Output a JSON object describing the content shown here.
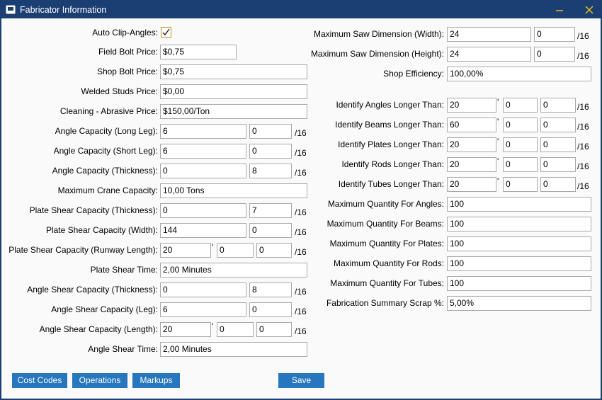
{
  "window": {
    "title": "Fabricator Information"
  },
  "left_fields": [
    {
      "label": "Auto Clip-Angles:",
      "checked": true
    },
    {
      "label": "Field Bolt Price:",
      "inputs": [
        "$0,75"
      ]
    },
    {
      "label": "Shop Bolt Price:",
      "inputs": [
        "$0,75"
      ]
    },
    {
      "label": "Welded Studs Price:",
      "inputs": [
        "$0,00"
      ]
    },
    {
      "label": "Cleaning - Abrasive Price:",
      "inputs": [
        "$150,00/Ton"
      ]
    },
    {
      "label": "Angle Capacity (Long Leg):",
      "inputs": [
        "6",
        "0"
      ],
      "unit": "/16"
    },
    {
      "label": "Angle Capacity (Short Leg):",
      "inputs": [
        "6",
        "0"
      ],
      "unit": "/16"
    },
    {
      "label": "Angle Capacity (Thickness):",
      "inputs": [
        "0",
        "8"
      ],
      "unit": "/16"
    },
    {
      "label": "Maximum Crane Capacity:",
      "inputs": [
        "10,00 Tons"
      ]
    },
    {
      "label": "Plate Shear Capacity (Thickness):",
      "inputs": [
        "0",
        "7"
      ],
      "unit": "/16"
    },
    {
      "label": "Plate Shear Capacity (Width):",
      "inputs": [
        "144",
        "0"
      ],
      "unit": "/16"
    },
    {
      "label": "Plate Shear Capacity (Runway Length):",
      "inputs": [
        "20",
        "0",
        "0"
      ],
      "feet_mark": "'",
      "unit": "/16"
    },
    {
      "label": "Plate Shear Time:",
      "inputs": [
        "2,00 Minutes"
      ]
    },
    {
      "label": "Angle Shear Capacity (Thickness):",
      "inputs": [
        "0",
        "8"
      ],
      "unit": "/16"
    },
    {
      "label": "Angle Shear Capacity (Leg):",
      "inputs": [
        "6",
        "0"
      ],
      "unit": "/16"
    },
    {
      "label": "Angle Shear Capacity (Length):",
      "inputs": [
        "20",
        "0",
        "0"
      ],
      "feet_mark": "'",
      "unit": "/16"
    },
    {
      "label": "Angle Shear Time:",
      "inputs": [
        "2,00 Minutes"
      ]
    }
  ],
  "right_fields": [
    {
      "label": "Maximum Saw Dimension (Width):",
      "inputs": [
        "24",
        "0"
      ],
      "unit": "/16"
    },
    {
      "label": "Maximum Saw Dimension (Height):",
      "inputs": [
        "24",
        "0"
      ],
      "unit": "/16"
    },
    {
      "label": "Shop Efficiency:",
      "inputs": [
        "100,00%"
      ]
    },
    {
      "label": "Identify Angles Longer Than:",
      "inputs": [
        "20",
        "0",
        "0"
      ],
      "feet_mark": "'",
      "unit": "/16"
    },
    {
      "label": "Identify Beams Longer Than:",
      "inputs": [
        "60",
        "0",
        "0"
      ],
      "feet_mark": "'",
      "unit": "/16"
    },
    {
      "label": "Identify Plates Longer Than:",
      "inputs": [
        "20",
        "0",
        "0"
      ],
      "feet_mark": "'",
      "unit": "/16"
    },
    {
      "label": "Identify Rods Longer Than:",
      "inputs": [
        "20",
        "0",
        "0"
      ],
      "feet_mark": "'",
      "unit": "/16"
    },
    {
      "label": "Identify Tubes Longer Than:",
      "inputs": [
        "20",
        "0",
        "0"
      ],
      "feet_mark": "'",
      "unit": "/16"
    },
    {
      "label": "Maximum Quantity For Angles:",
      "inputs": [
        "100"
      ]
    },
    {
      "label": "Maximum Quantity For Beams:",
      "inputs": [
        "100"
      ]
    },
    {
      "label": "Maximum Quantity For Plates:",
      "inputs": [
        "100"
      ]
    },
    {
      "label": "Maximum Quantity For Rods:",
      "inputs": [
        "100"
      ]
    },
    {
      "label": "Maximum Quantity For Tubes:",
      "inputs": [
        "100"
      ]
    },
    {
      "label": "Fabrication Summary Scrap %:",
      "inputs": [
        "5,00%"
      ]
    }
  ],
  "buttons": [
    "Cost Codes",
    "Operations",
    "Markups",
    "Save"
  ]
}
